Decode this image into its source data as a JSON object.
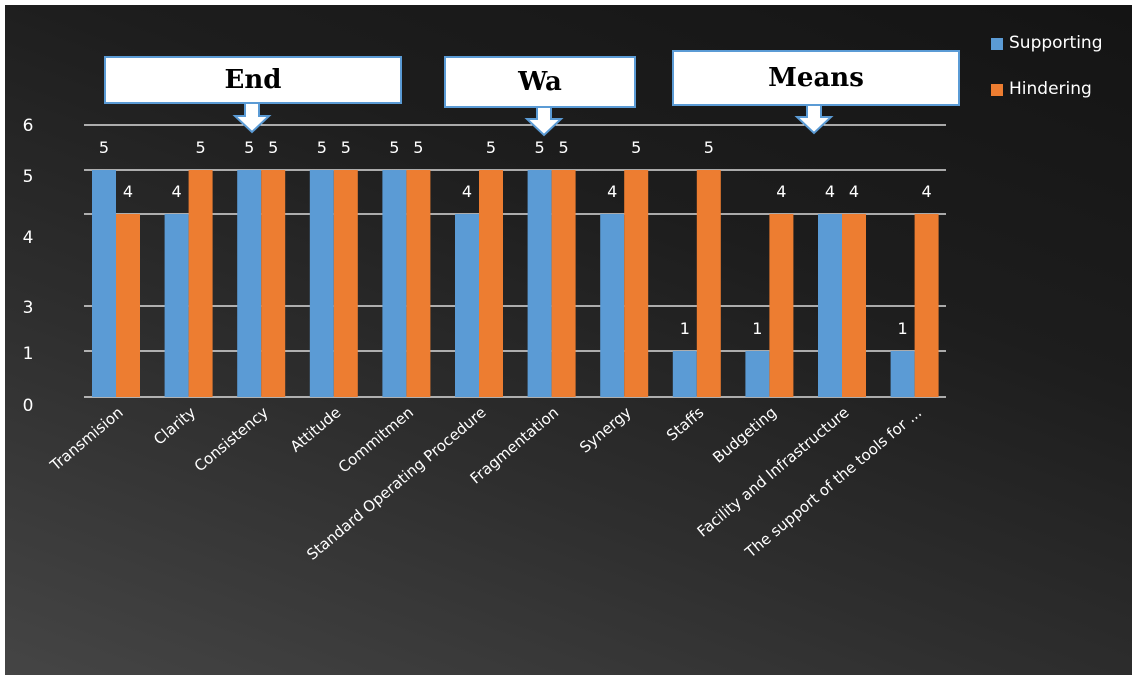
{
  "chart_data": {
    "type": "bar",
    "categories": [
      "Transmision",
      "Clarity",
      "Consistency",
      "Attitude",
      "Commitmen",
      "Standard Operating Procedure",
      "Fragmentation",
      "Synergy",
      "Staffs",
      "Budgeting",
      "Facility and Infrastructure",
      "The support of the tools for ..."
    ],
    "series": [
      {
        "name": "Supporting",
        "values": [
          5,
          4,
          5,
          5,
          5,
          4,
          5,
          4,
          1,
          1,
          4,
          1
        ],
        "color": "#5b9bd5"
      },
      {
        "name": "Hindering",
        "values": [
          4,
          5,
          5,
          5,
          5,
          5,
          5,
          5,
          5,
          4,
          4,
          4
        ],
        "color": "#ed7d31"
      }
    ],
    "y_ticks": [
      "0",
      "1",
      "3",
      "4",
      "5",
      "6"
    ],
    "ylim": [
      0,
      6
    ],
    "grid": true,
    "legend": "top-right",
    "callouts": [
      "End",
      "Wa",
      "Means"
    ]
  }
}
